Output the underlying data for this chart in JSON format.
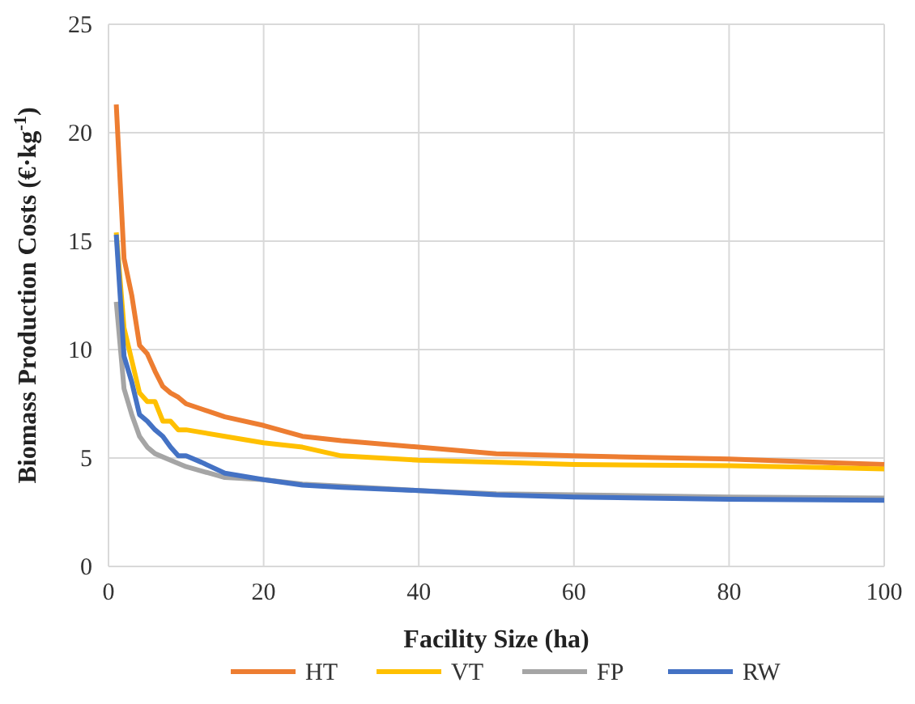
{
  "chart_data": {
    "type": "line",
    "xlabel": "Facility Size (ha)",
    "ylabel": "Biomass Production Costs (€·kg$^{-1}$)",
    "xlim": [
      0,
      100
    ],
    "xticks": [
      0,
      20,
      40,
      60,
      80,
      100
    ],
    "ylim": [
      0,
      25
    ],
    "yticks": [
      0,
      5,
      10,
      15,
      20,
      25
    ],
    "grid": true,
    "legend": "bottom",
    "marker": "none",
    "line_style": "solid",
    "series": [
      {
        "name": "HT",
        "color": "#ed7d31",
        "x": [
          1,
          2,
          3,
          4,
          5,
          6,
          7,
          8,
          9,
          10,
          15,
          20,
          25,
          30,
          40,
          50,
          60,
          80,
          100
        ],
        "values": [
          21.3,
          14.2,
          12.5,
          10.2,
          9.8,
          9.0,
          8.3,
          8.0,
          7.8,
          7.5,
          6.9,
          6.5,
          6.0,
          5.8,
          5.5,
          5.2,
          5.1,
          4.95,
          4.7
        ]
      },
      {
        "name": "VT",
        "color": "#ffc000",
        "x": [
          1,
          2,
          3,
          4,
          5,
          6,
          7,
          8,
          9,
          10,
          15,
          20,
          25,
          30,
          40,
          50,
          60,
          80,
          100
        ],
        "values": [
          15.4,
          11,
          9.5,
          8.0,
          7.6,
          7.6,
          6.7,
          6.7,
          6.3,
          6.3,
          6.0,
          5.7,
          5.5,
          5.1,
          4.9,
          4.8,
          4.7,
          4.65,
          4.5
        ]
      },
      {
        "name": "FP",
        "color": "#a5a5a5",
        "x": [
          1,
          2,
          3,
          4,
          5,
          6,
          8,
          10,
          15,
          20,
          25,
          30,
          40,
          50,
          60,
          80,
          100
        ],
        "values": [
          12.2,
          8.2,
          7.0,
          6.0,
          5.5,
          5.2,
          4.9,
          4.6,
          4.1,
          4.0,
          3.8,
          3.7,
          3.5,
          3.35,
          3.3,
          3.2,
          3.15
        ]
      },
      {
        "name": "RW",
        "color": "#4472c4",
        "x": [
          1,
          2,
          3,
          4,
          5,
          6,
          7,
          8,
          9,
          10,
          12,
          15,
          20,
          25,
          30,
          40,
          50,
          60,
          80,
          100
        ],
        "values": [
          15.3,
          9.7,
          8.5,
          7.0,
          6.7,
          6.3,
          6.0,
          5.5,
          5.1,
          5.1,
          4.8,
          4.3,
          4.0,
          3.75,
          3.65,
          3.5,
          3.3,
          3.2,
          3.1,
          3.05
        ]
      }
    ]
  }
}
